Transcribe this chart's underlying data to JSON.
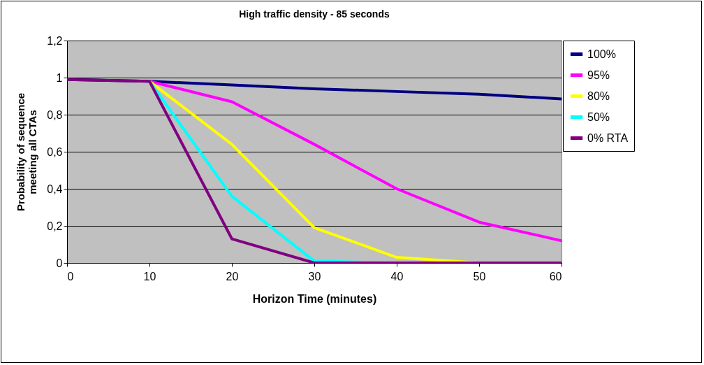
{
  "chart_data": {
    "type": "line",
    "title": "High traffic density - 85 seconds",
    "xlabel": "Horizon Time (minutes)",
    "ylabel": "Probability of sequence meeting all CTAs",
    "x": [
      0,
      10,
      20,
      30,
      40,
      50,
      60
    ],
    "series": [
      {
        "name": "100%",
        "color": "#000080",
        "values": [
          0.99,
          0.98,
          0.96,
          0.94,
          0.925,
          0.91,
          0.885
        ]
      },
      {
        "name": "95%",
        "color": "#ff00ff",
        "values": [
          null,
          0.98,
          0.87,
          0.64,
          0.4,
          0.22,
          0.12
        ]
      },
      {
        "name": "80%",
        "color": "#ffff00",
        "values": [
          null,
          0.98,
          0.64,
          0.19,
          0.03,
          0,
          0
        ]
      },
      {
        "name": "50%",
        "color": "#00ffff",
        "values": [
          null,
          0.98,
          0.36,
          0.01,
          0,
          0,
          0
        ]
      },
      {
        "name": "0% RTA",
        "color": "#800080",
        "values": [
          0.99,
          0.98,
          0.13,
          0,
          0,
          0,
          0
        ]
      }
    ],
    "xlim": [
      0,
      60
    ],
    "xticks": [
      0,
      10,
      20,
      30,
      40,
      50,
      60
    ],
    "ylim": [
      0,
      1.2
    ],
    "yticks": [
      0,
      {
        "value": 0.2,
        "label": "0,2"
      },
      {
        "value": 0.4,
        "label": "0,4"
      },
      {
        "value": 0.6,
        "label": "0,6"
      },
      {
        "value": 0.8,
        "label": "0,8"
      },
      1,
      {
        "value": 1.2,
        "label": "1,2"
      }
    ],
    "grid": "y",
    "legend": "right",
    "marker": "none",
    "line_style": "solid"
  }
}
